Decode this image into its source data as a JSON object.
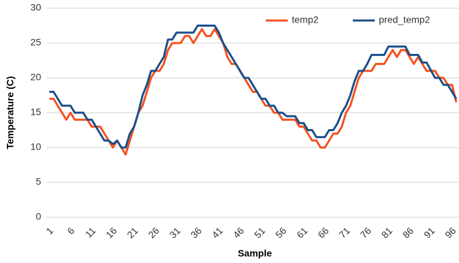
{
  "chart_data": {
    "type": "line",
    "x_label": "Sample",
    "y_label": "Temperature (C)",
    "categories": [
      "1",
      null,
      null,
      null,
      null,
      "6",
      null,
      null,
      null,
      null,
      "11",
      null,
      null,
      null,
      null,
      "16",
      null,
      null,
      null,
      null,
      "21",
      null,
      null,
      null,
      null,
      "26",
      null,
      null,
      null,
      null,
      "31",
      null,
      null,
      null,
      null,
      "36",
      null,
      null,
      null,
      null,
      "41",
      null,
      null,
      null,
      null,
      "46",
      null,
      null,
      null,
      null,
      "51",
      null,
      null,
      null,
      null,
      "56",
      null,
      null,
      null,
      null,
      "61",
      null,
      null,
      null,
      null,
      "66",
      null,
      null,
      null,
      null,
      "71",
      null,
      null,
      null,
      null,
      "76",
      null,
      null,
      null,
      null,
      "81",
      null,
      null,
      null,
      null,
      "86",
      null,
      null,
      null,
      null,
      "91",
      null,
      null,
      null,
      null,
      "96",
      null
    ],
    "series": [
      {
        "name": "temp2",
        "color": "#f4511e",
        "values": [
          17,
          17,
          16,
          15,
          14,
          15,
          14,
          14,
          14,
          14,
          13,
          13,
          13,
          12,
          11,
          10,
          11,
          10,
          9,
          11,
          13,
          15,
          16,
          18,
          20,
          21,
          21,
          22,
          24,
          25,
          25,
          25,
          26,
          26,
          25,
          26,
          27,
          26,
          26,
          27,
          26,
          25,
          23,
          22,
          22,
          21,
          20,
          19,
          18,
          18,
          17,
          16,
          16,
          15,
          15,
          14,
          14,
          14,
          14,
          13,
          13,
          12,
          11,
          11,
          10,
          10,
          11,
          12,
          12,
          13,
          15,
          16,
          18,
          20,
          21,
          21,
          21,
          22,
          22,
          22,
          23,
          24,
          23,
          24,
          24,
          23,
          22,
          23,
          22,
          21,
          21,
          21,
          20,
          20,
          19,
          19,
          16.5
        ]
      },
      {
        "name": "pred_temp2",
        "color": "#1a4e8a",
        "values": [
          18,
          18,
          17,
          16,
          16,
          16,
          15,
          15,
          15,
          14,
          14,
          13,
          12,
          11,
          11,
          10.5,
          11,
          10,
          10,
          12,
          13,
          15,
          17.5,
          19,
          21,
          21,
          22,
          23,
          25.5,
          25.5,
          26.5,
          26.5,
          26.5,
          26.5,
          26.5,
          27.5,
          27.5,
          27.5,
          27.5,
          27.5,
          26.5,
          25,
          24,
          23,
          22,
          21,
          20,
          20,
          19,
          18,
          17,
          17,
          16,
          16,
          15,
          15,
          14.5,
          14.5,
          14.5,
          13.5,
          13.5,
          12.5,
          12.5,
          11.5,
          11.5,
          11.5,
          12.5,
          12.5,
          13.5,
          15,
          16,
          17.5,
          19.5,
          21,
          21,
          22,
          23.3,
          23.3,
          23.3,
          23.3,
          24.5,
          24.5,
          24.5,
          24.5,
          24.5,
          23.3,
          23.3,
          23.3,
          22.2,
          22.2,
          21.1,
          20,
          20,
          19,
          19,
          18,
          17
        ]
      }
    ],
    "ylim": [
      0,
      30
    ],
    "yticks": [
      0,
      5,
      10,
      15,
      20,
      25,
      30
    ],
    "grid": true,
    "legend": "top-right"
  }
}
